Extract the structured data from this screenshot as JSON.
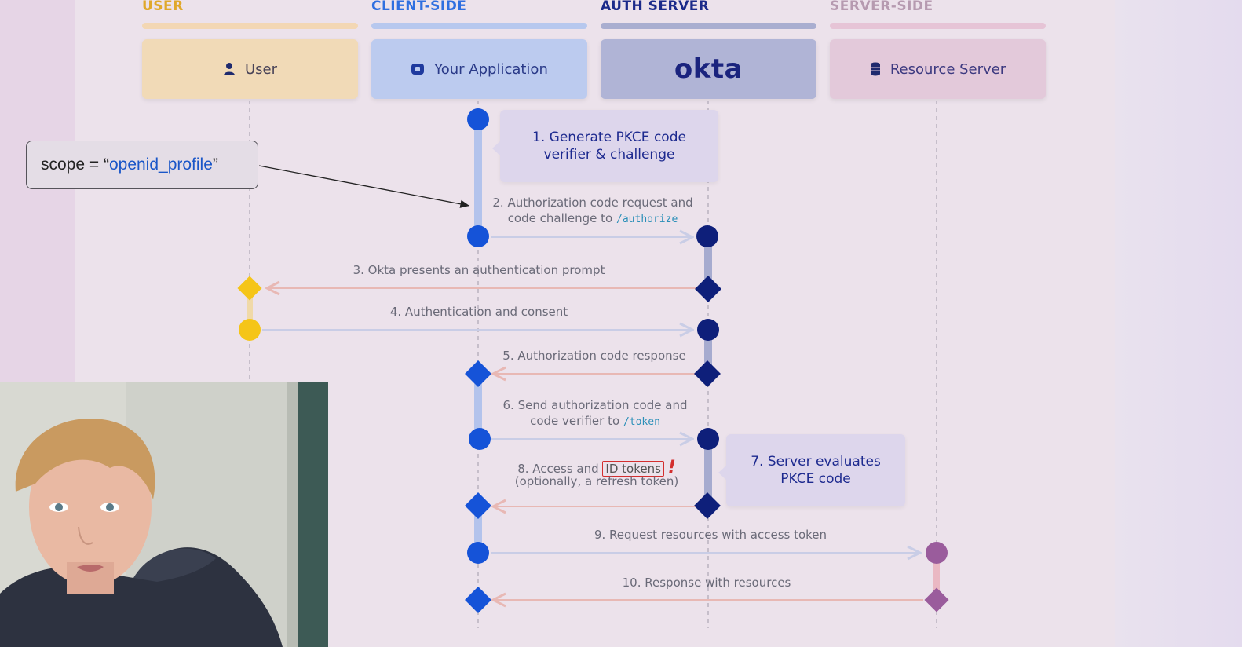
{
  "lanes": [
    {
      "tag": "USER",
      "color": "#e0a82a",
      "bar_color": "#f3d7b4",
      "box_color": "#f1dab7",
      "text_color": "#4a4458",
      "actor_label": "User",
      "icon": "person-icon"
    },
    {
      "tag": "CLIENT-SIDE",
      "color": "#2f6fe0",
      "bar_color": "#b7c8ee",
      "box_color": "#bccbef",
      "text_color": "#2a3a88",
      "actor_label": "Your Application",
      "icon": "app-icon"
    },
    {
      "tag": "AUTH SERVER",
      "color": "#1b2a8a",
      "bar_color": "#a9aed0",
      "box_color": "#b0b4d6",
      "text_color": "#1a237e",
      "actor_label": "okta",
      "icon": "okta-logo"
    },
    {
      "tag": "SERVER-SIDE",
      "color": "#b69ab0",
      "bar_color": "#e6c4d6",
      "box_color": "#e3c9da",
      "text_color": "#3d3a80",
      "actor_label": "Resource Server",
      "icon": "database-icon"
    }
  ],
  "notes": {
    "note1": "1. Generate PKCE code verifier & challenge",
    "note7": "7. Server evaluates PKCE code"
  },
  "messages": {
    "m2_line1": "2. Authorization code request and",
    "m2_line2": "code challenge to",
    "m2_code": "/authorize",
    "m3": "3. Okta presents an authentication prompt",
    "m4": "4. Authentication and consent",
    "m5": "5. Authorization code response",
    "m6_line1": "6. Send authorization code and",
    "m6_line2": "code verifier to",
    "m6_code": "/token",
    "m8_prefix": "8. Access and",
    "m8_highlight": "ID tokens",
    "m8_mark": "!",
    "m8_line2": "(optionally, a refresh token)",
    "m9": "9. Request resources with access token",
    "m10": "10. Response with resources"
  },
  "callout": {
    "prefix": "scope = “",
    "value": "openid_profile",
    "suffix": "”"
  },
  "colors": {
    "client_node": "#1553d8",
    "auth_node": "#0e1f7a",
    "user_node": "#f5c518",
    "resource_node": "#9a5c9c",
    "request_arrow": "#c9cde6",
    "response_arrow": "#e8b8b4",
    "callout_value": "#1a56c8",
    "highlight_box": "#d32f2f"
  }
}
